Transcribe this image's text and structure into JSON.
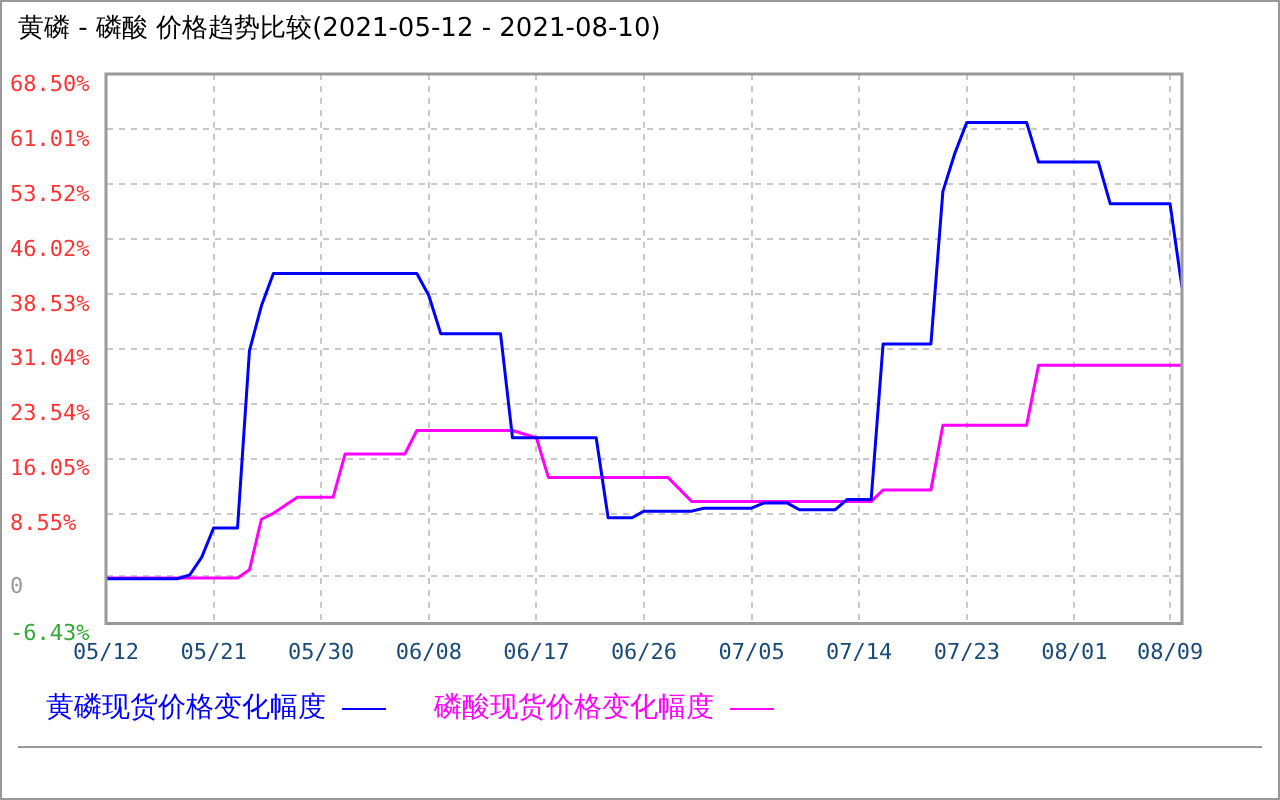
{
  "chart_data": {
    "type": "line",
    "title": "黄磷 - 磷酸 价格趋势比较(2021-05-12 - 2021-08-10)",
    "xlim": [
      "2021-05-12",
      "2021-08-10"
    ],
    "xticks": [
      {
        "value": "2021-05-12",
        "label": "05/12"
      },
      {
        "value": "2021-05-21",
        "label": "05/21"
      },
      {
        "value": "2021-05-30",
        "label": "05/30"
      },
      {
        "value": "2021-06-08",
        "label": "06/08"
      },
      {
        "value": "2021-06-17",
        "label": "06/17"
      },
      {
        "value": "2021-06-26",
        "label": "06/26"
      },
      {
        "value": "2021-07-05",
        "label": "07/05"
      },
      {
        "value": "2021-07-14",
        "label": "07/14"
      },
      {
        "value": "2021-07-23",
        "label": "07/23"
      },
      {
        "value": "2021-08-01",
        "label": "08/01"
      },
      {
        "value": "2021-08-09",
        "label": "08/09"
      }
    ],
    "ylim": [
      -6.43,
      68.5
    ],
    "yticks": [
      {
        "value": -6.43,
        "label": "-6.43%"
      },
      0,
      {
        "value": 8.55,
        "label": "8.55%"
      },
      {
        "value": 16.05,
        "label": "16.05%"
      },
      {
        "value": 23.54,
        "label": "23.54%"
      },
      {
        "value": 31.04,
        "label": "31.04%"
      },
      {
        "value": 38.53,
        "label": "38.53%"
      },
      {
        "value": 46.02,
        "label": "46.02%"
      },
      {
        "value": 53.52,
        "label": "53.52%"
      },
      {
        "value": 61.01,
        "label": "61.01%"
      },
      {
        "value": 68.5,
        "label": "68.50%"
      }
    ],
    "grid": true,
    "legend": "bottom",
    "marker": "none",
    "series": [
      {
        "name": "黄磷现货价格变化幅度",
        "color": "#0000ff",
        "x": [
          "2021-05-12",
          "2021-05-18",
          "2021-05-19",
          "2021-05-20",
          "2021-05-21",
          "2021-05-23",
          "2021-05-24",
          "2021-05-25",
          "2021-05-26",
          "2021-06-07",
          "2021-06-08",
          "2021-06-09",
          "2021-06-14",
          "2021-06-15",
          "2021-06-22",
          "2021-06-23",
          "2021-06-25",
          "2021-06-26",
          "2021-06-30",
          "2021-07-01",
          "2021-07-05",
          "2021-07-06",
          "2021-07-08",
          "2021-07-09",
          "2021-07-12",
          "2021-07-13",
          "2021-07-15",
          "2021-07-16",
          "2021-07-20",
          "2021-07-21",
          "2021-07-22",
          "2021-07-23",
          "2021-07-28",
          "2021-07-29",
          "2021-08-03",
          "2021-08-04",
          "2021-08-09",
          "2021-08-10"
        ],
        "values": [
          -0.3,
          -0.3,
          0.2,
          2.6,
          6.6,
          6.6,
          30.8,
          36.9,
          41.3,
          41.3,
          38.3,
          33.1,
          33.1,
          18.9,
          18.9,
          8.0,
          8.0,
          8.9,
          8.9,
          9.3,
          9.3,
          10.0,
          10.0,
          9.1,
          9.1,
          10.5,
          10.5,
          31.7,
          31.7,
          52.5,
          57.7,
          61.9,
          61.9,
          56.5,
          56.5,
          50.8,
          50.8,
          39.4
        ]
      },
      {
        "name": "磷酸现货价格变化幅度",
        "color": "#ff00ff",
        "x": [
          "2021-05-12",
          "2021-05-23",
          "2021-05-24",
          "2021-05-25",
          "2021-05-26",
          "2021-05-28",
          "2021-05-31",
          "2021-06-01",
          "2021-06-06",
          "2021-06-07",
          "2021-06-15",
          "2021-06-17",
          "2021-06-18",
          "2021-06-28",
          "2021-06-30",
          "2021-07-15",
          "2021-07-16",
          "2021-07-20",
          "2021-07-21",
          "2021-07-28",
          "2021-07-29",
          "2021-08-10"
        ],
        "values": [
          -0.2,
          -0.2,
          0.9,
          7.8,
          8.6,
          10.8,
          10.8,
          16.7,
          16.7,
          19.9,
          19.9,
          18.9,
          13.5,
          13.5,
          10.2,
          10.2,
          11.8,
          11.8,
          20.6,
          20.6,
          28.8,
          28.8
        ]
      }
    ]
  }
}
